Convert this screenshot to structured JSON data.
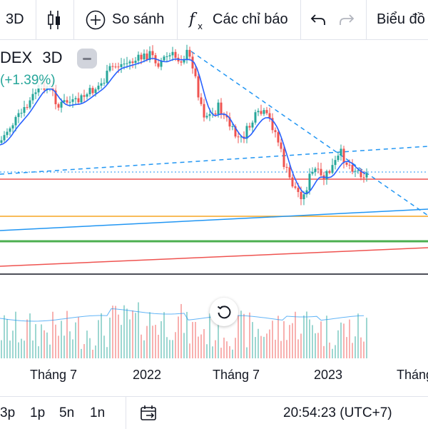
{
  "toolbar": {
    "interval": "3D",
    "compare_label": "So sánh",
    "indicators_label": "Các chỉ báo",
    "chart_type_label": "Biểu đồ"
  },
  "legend": {
    "symbol_fragment": "DEX",
    "interval": "3D",
    "change": "(+1.39%)"
  },
  "x_axis": {
    "labels": [
      "Tháng 7",
      "2022",
      "Tháng 7",
      "2023",
      "Tháng"
    ]
  },
  "bottom_bar": {
    "ranges": [
      "3p",
      "1p",
      "5n",
      "1n"
    ],
    "time": "20:54:23 (UTC+7)"
  },
  "colors": {
    "up": "#26a69a",
    "down": "#ef5350",
    "ma": "#2962ff",
    "trend": "#2196f3",
    "support_orange": "#f5a623",
    "support_green": "#4caf50",
    "support_red": "#ef5350"
  },
  "icons": [
    "candles-icon",
    "plus-circle-icon",
    "fx-icon",
    "undo-icon",
    "redo-icon",
    "collapse-icon",
    "reset-icon",
    "goto-date-icon"
  ]
}
